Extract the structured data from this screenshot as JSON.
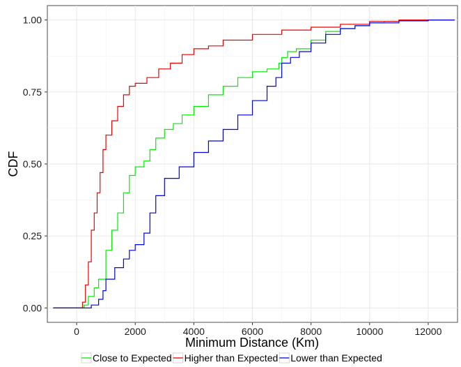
{
  "chart_data": {
    "type": "line",
    "xlabel": "Minimum Distance (Km)",
    "ylabel": "CDF",
    "xlim": [
      -1000,
      13000
    ],
    "ylim": [
      -0.05,
      1.05
    ],
    "x_ticks": [
      0,
      2000,
      4000,
      6000,
      8000,
      10000,
      12000
    ],
    "x_tick_labels": [
      "0",
      "2000",
      "4000",
      "6000",
      "8000",
      "10000",
      "12000"
    ],
    "y_ticks": [
      0,
      0.25,
      0.5,
      0.75,
      1
    ],
    "y_tick_labels": [
      "0.00",
      "0.25",
      "0.50",
      "0.75",
      "1.00"
    ],
    "grid": true,
    "legend_position": "bottom",
    "series": [
      {
        "name": "Close to Expected",
        "color": "#00ee00",
        "points": [
          [
            -800,
            0
          ],
          [
            100,
            0
          ],
          [
            250,
            0.01
          ],
          [
            400,
            0.04
          ],
          [
            600,
            0.07
          ],
          [
            750,
            0.1
          ],
          [
            1000,
            0.2
          ],
          [
            1200,
            0.27
          ],
          [
            1400,
            0.33
          ],
          [
            1600,
            0.4
          ],
          [
            1800,
            0.46
          ],
          [
            2000,
            0.49
          ],
          [
            2300,
            0.51
          ],
          [
            2500,
            0.55
          ],
          [
            2700,
            0.59
          ],
          [
            3000,
            0.62
          ],
          [
            3300,
            0.64
          ],
          [
            3600,
            0.67
          ],
          [
            4000,
            0.7
          ],
          [
            4500,
            0.74
          ],
          [
            5000,
            0.77
          ],
          [
            5500,
            0.8
          ],
          [
            6000,
            0.82
          ],
          [
            6500,
            0.83
          ],
          [
            6900,
            0.85
          ],
          [
            7000,
            0.87
          ],
          [
            7200,
            0.89
          ],
          [
            7500,
            0.9
          ],
          [
            8000,
            0.93
          ],
          [
            8500,
            0.96
          ],
          [
            9000,
            0.97
          ],
          [
            9500,
            0.98
          ],
          [
            10000,
            0.99
          ],
          [
            10500,
            0.995
          ],
          [
            11000,
            1.0
          ],
          [
            12900,
            1.0
          ]
        ]
      },
      {
        "name": "Higher than Expected",
        "color": "#ee0000",
        "points": [
          [
            -800,
            0
          ],
          [
            100,
            0
          ],
          [
            200,
            0.02
          ],
          [
            300,
            0.08
          ],
          [
            400,
            0.16
          ],
          [
            500,
            0.27
          ],
          [
            600,
            0.33
          ],
          [
            700,
            0.4
          ],
          [
            800,
            0.47
          ],
          [
            900,
            0.55
          ],
          [
            1000,
            0.6
          ],
          [
            1200,
            0.65
          ],
          [
            1400,
            0.7
          ],
          [
            1600,
            0.74
          ],
          [
            1800,
            0.77
          ],
          [
            2000,
            0.78
          ],
          [
            2400,
            0.8
          ],
          [
            2800,
            0.83
          ],
          [
            3200,
            0.85
          ],
          [
            3600,
            0.88
          ],
          [
            4000,
            0.9
          ],
          [
            4500,
            0.91
          ],
          [
            5000,
            0.93
          ],
          [
            6000,
            0.95
          ],
          [
            7000,
            0.965
          ],
          [
            8000,
            0.975
          ],
          [
            9000,
            0.985
          ],
          [
            10000,
            0.995
          ],
          [
            11000,
            1.0
          ],
          [
            12900,
            1.0
          ]
        ]
      },
      {
        "name": "Lower than Expected",
        "color": "#0000ee",
        "points": [
          [
            -800,
            0
          ],
          [
            100,
            0
          ],
          [
            500,
            0.01
          ],
          [
            750,
            0.03
          ],
          [
            900,
            0.06
          ],
          [
            1000,
            0.1
          ],
          [
            1300,
            0.14
          ],
          [
            1600,
            0.17
          ],
          [
            1800,
            0.2
          ],
          [
            2000,
            0.22
          ],
          [
            2300,
            0.26
          ],
          [
            2500,
            0.33
          ],
          [
            2700,
            0.39
          ],
          [
            3000,
            0.45
          ],
          [
            3500,
            0.49
          ],
          [
            4000,
            0.54
          ],
          [
            4500,
            0.58
          ],
          [
            5000,
            0.62
          ],
          [
            5500,
            0.67
          ],
          [
            6000,
            0.72
          ],
          [
            6500,
            0.77
          ],
          [
            6800,
            0.8
          ],
          [
            7000,
            0.85
          ],
          [
            7300,
            0.87
          ],
          [
            7600,
            0.89
          ],
          [
            8000,
            0.92
          ],
          [
            8500,
            0.95
          ],
          [
            9000,
            0.97
          ],
          [
            9500,
            0.98
          ],
          [
            10000,
            0.99
          ],
          [
            11000,
            0.997
          ],
          [
            12000,
            1.0
          ],
          [
            12900,
            1.0
          ]
        ]
      }
    ]
  }
}
